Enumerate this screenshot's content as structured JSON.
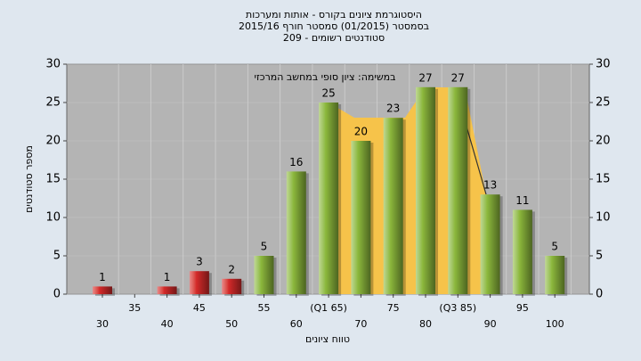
{
  "chart_data": {
    "type": "bar",
    "title": [
      "היסטוגרמת ציונים בקורס - אותות ומערכות",
      "בסמסטר  (01/2015)  סמסטר חורף 2015/16",
      "סטודנטים רשומים - 209"
    ],
    "annotation": "במשימה: ציון סופי במחשב המרכזי",
    "x_label": "טווח ציונים",
    "y_label": "מספר סטודנטים",
    "categories": [
      "30",
      "35",
      "40",
      "45",
      "50",
      "55",
      "60",
      "(Q1 65)",
      "70",
      "75",
      "80",
      "(Q3 85)",
      "90",
      "95",
      "100"
    ],
    "values": [
      1,
      0,
      1,
      3,
      2,
      5,
      16,
      25,
      20,
      23,
      27,
      27,
      13,
      11,
      5
    ],
    "colors": [
      "#d42a2a",
      "#d42a2a",
      "#d42a2a",
      "#d42a2a",
      "#d42a2a",
      "#8cb83c",
      "#8cb83c",
      "#8cb83c",
      "#8cb83c",
      "#8cb83c",
      "#8cb83c",
      "#8cb83c",
      "#8cb83c",
      "#8cb83c",
      "#8cb83c"
    ],
    "ylim": [
      0,
      30
    ],
    "yticks": [
      0,
      5,
      10,
      15,
      20,
      25,
      30
    ],
    "y2lim": [
      0,
      30
    ],
    "y2ticks": [
      0,
      5,
      10,
      15,
      20,
      25,
      30
    ]
  }
}
